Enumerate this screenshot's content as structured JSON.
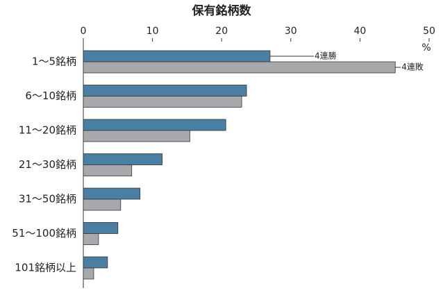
{
  "chart_data": {
    "type": "bar",
    "orientation": "horizontal",
    "title": "保有銘柄数",
    "xlabel": "%",
    "categories": [
      "1～5銘柄",
      "6～10銘柄",
      "11～20銘柄",
      "21～30銘柄",
      "31～50銘柄",
      "51～100銘柄",
      "101銘柄以上"
    ],
    "series": [
      {
        "name": "4連勝",
        "color": "#4a7fa3",
        "values": [
          27.0,
          23.6,
          20.6,
          11.4,
          8.2,
          5.0,
          3.5
        ]
      },
      {
        "name": "4連敗",
        "color": "#a7a9ac",
        "values": [
          45.1,
          22.9,
          15.4,
          7.0,
          5.4,
          2.2,
          1.5
        ]
      }
    ],
    "xlim": [
      0,
      50
    ],
    "xticks": [
      0,
      10,
      20,
      30,
      40,
      50
    ],
    "grid": false
  }
}
